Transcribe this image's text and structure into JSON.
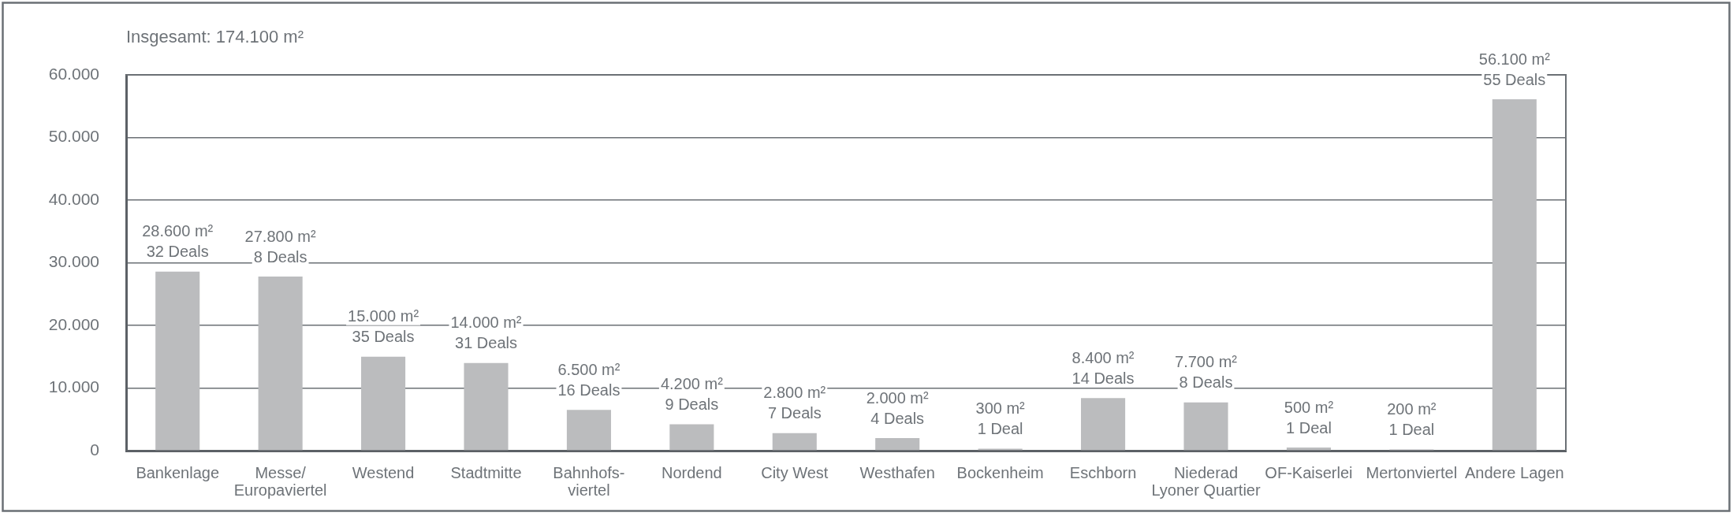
{
  "chart_data": {
    "type": "bar",
    "title": "Insgesamt: 174.100 m²",
    "categories": [
      "Bankenlage",
      "Messe/\nEuropaviertel",
      "Westend",
      "Stadtmitte",
      "Bahnhofs-\nviertel",
      "Nordend",
      "City West",
      "Westhafen",
      "Bockenheim",
      "Eschborn",
      "Niederad\nLyoner Quartier",
      "OF-Kaiserlei",
      "Mertonviertel",
      "Andere Lagen"
    ],
    "values": [
      28600,
      27800,
      15000,
      14000,
      6500,
      4200,
      2800,
      2000,
      300,
      8400,
      7700,
      500,
      200,
      56100
    ],
    "value_labels": [
      "28.600 m²\n32 Deals",
      "27.800 m²\n8 Deals",
      "15.000 m²\n35 Deals",
      "14.000 m²\n31 Deals",
      "6.500 m²\n16 Deals",
      "4.200 m²\n9 Deals",
      "2.800 m²\n7 Deals",
      "2.000 m²\n4 Deals",
      "300 m²\n1 Deal",
      "8.400 m²\n14 Deals",
      "7.700 m²\n8 Deals",
      "500 m²\n1 Deal",
      "200 m²\n1 Deal",
      "56.100 m²\n55 Deals"
    ],
    "color": "#bbbcbe",
    "ylim": [
      0,
      60000
    ],
    "yticks": [
      0,
      {
        "value": 10000,
        "label": "10.000"
      },
      {
        "value": 20000,
        "label": "20.000"
      },
      {
        "value": 30000,
        "label": "30.000"
      },
      {
        "value": 40000,
        "label": "40.000"
      },
      {
        "value": 50000,
        "label": "50.000"
      },
      {
        "value": 60000,
        "label": "60.000"
      }
    ],
    "grid": "y"
  }
}
